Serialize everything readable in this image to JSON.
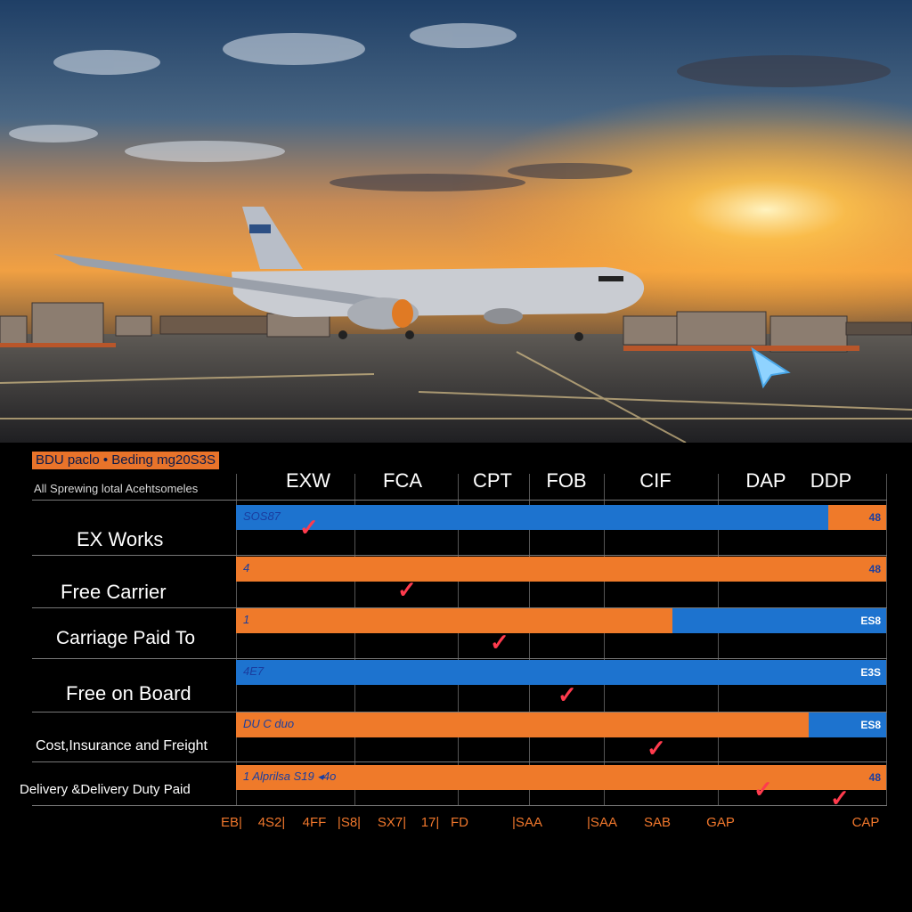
{
  "header": {
    "badge": "BDU paclo  • Beding mg20S3S",
    "subtitle": "All Sprewing lotal Acehtsomeles"
  },
  "columns": [
    "EXW",
    "FCA",
    "CPT",
    "FOB",
    "CIF",
    "DAP",
    "DDP"
  ],
  "rows": [
    {
      "label": "EX Works",
      "start": "SOS87",
      "end": "48",
      "color": "blue"
    },
    {
      "label": "Free Carrier",
      "start": "4",
      "end": "48",
      "color": "orange"
    },
    {
      "label": "Carriage Paid To",
      "start": "1",
      "end": "ES8",
      "color": "orange"
    },
    {
      "label": "Free on Board",
      "start": "4E7",
      "end": "E3S",
      "color": "blue"
    },
    {
      "label": "Cost,Insurance and Freight",
      "start": "DU C duo",
      "end": "ES8",
      "color": "orange"
    },
    {
      "label": "Delivery &Delivery Duty Paid",
      "start": "1   Alprilsa S19  ◂4o",
      "end": "48",
      "color": "orange"
    }
  ],
  "ticks": [
    "EB|",
    "4S2|",
    "4FF",
    "|S8|",
    "SX7|",
    "17|",
    "FD",
    "|SAA",
    "|SAA",
    "SAB",
    "GAP",
    "CAP"
  ],
  "colors": {
    "blue": "#1d73cf",
    "orange": "#ef7a2a",
    "check": "#ff3b4d"
  },
  "icons": [
    "cursor-arrow-icon",
    "check-mark-icon"
  ]
}
